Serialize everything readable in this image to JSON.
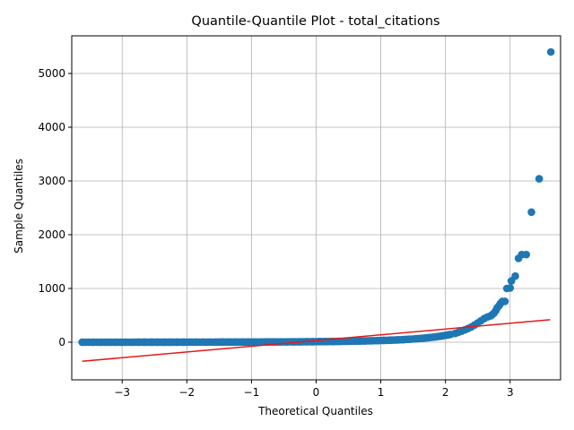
{
  "chart_data": {
    "type": "scatter",
    "title": "Quantile-Quantile Plot - total_citations",
    "xlabel": "Theoretical Quantiles",
    "ylabel": "Sample Quantiles",
    "xlim": [
      -3.78,
      3.78
    ],
    "ylim": [
      -700,
      5700
    ],
    "grid": true,
    "x_ticks": [
      -3,
      -2,
      -1,
      0,
      1,
      2,
      3
    ],
    "x_tick_labels": [
      "−3",
      "−2",
      "−1",
      "0",
      "1",
      "2",
      "3"
    ],
    "y_ticks": [
      0,
      1000,
      2000,
      3000,
      4000,
      5000
    ],
    "y_tick_labels": [
      "0",
      "1000",
      "2000",
      "3000",
      "4000",
      "5000"
    ],
    "marker_color": "#1f77b4",
    "line_color": "#e41a1c",
    "reference_line": {
      "x": [
        -3.62,
        3.62
      ],
      "y": [
        -355,
        418
      ]
    },
    "points": [
      [
        -3.62,
        0
      ],
      [
        -3.45,
        0
      ],
      [
        -3.33,
        0
      ],
      [
        -3.25,
        0
      ],
      [
        -3.18,
        0
      ],
      [
        -3.1,
        0
      ],
      [
        -3.02,
        0
      ],
      [
        -2.95,
        0
      ],
      [
        -2.85,
        0
      ],
      [
        -2.75,
        1
      ],
      [
        -2.65,
        1
      ],
      [
        -2.55,
        1
      ],
      [
        -2.45,
        1
      ],
      [
        -2.35,
        1
      ],
      [
        -2.25,
        1
      ],
      [
        -2.15,
        1
      ],
      [
        -2.05,
        1
      ],
      [
        -1.95,
        2
      ],
      [
        -1.85,
        2
      ],
      [
        -1.75,
        2
      ],
      [
        -1.65,
        2
      ],
      [
        -1.55,
        2
      ],
      [
        -1.45,
        3
      ],
      [
        -1.35,
        3
      ],
      [
        -1.25,
        3
      ],
      [
        -1.15,
        3
      ],
      [
        -1.05,
        4
      ],
      [
        -0.95,
        4
      ],
      [
        -0.85,
        4
      ],
      [
        -0.75,
        5
      ],
      [
        -0.65,
        5
      ],
      [
        -0.55,
        6
      ],
      [
        -0.45,
        6
      ],
      [
        -0.35,
        7
      ],
      [
        -0.25,
        8
      ],
      [
        -0.15,
        9
      ],
      [
        -0.05,
        10
      ],
      [
        0.05,
        11
      ],
      [
        0.15,
        12
      ],
      [
        0.25,
        13
      ],
      [
        0.35,
        15
      ],
      [
        0.45,
        17
      ],
      [
        0.55,
        19
      ],
      [
        0.65,
        21
      ],
      [
        0.75,
        24
      ],
      [
        0.85,
        27
      ],
      [
        0.95,
        30
      ],
      [
        1.05,
        34
      ],
      [
        1.15,
        38
      ],
      [
        1.25,
        43
      ],
      [
        1.35,
        49
      ],
      [
        1.45,
        56
      ],
      [
        1.55,
        64
      ],
      [
        1.65,
        74
      ],
      [
        1.75,
        86
      ],
      [
        1.85,
        100
      ],
      [
        1.95,
        117
      ],
      [
        2.05,
        138
      ],
      [
        2.15,
        163
      ],
      [
        2.2,
        185
      ],
      [
        2.25,
        205
      ],
      [
        2.3,
        230
      ],
      [
        2.35,
        255
      ],
      [
        2.4,
        285
      ],
      [
        2.45,
        320
      ],
      [
        2.5,
        360
      ],
      [
        2.55,
        400
      ],
      [
        2.6,
        440
      ],
      [
        2.65,
        470
      ],
      [
        2.7,
        490
      ],
      [
        2.72,
        510
      ],
      [
        2.75,
        540
      ],
      [
        2.78,
        590
      ],
      [
        2.8,
        640
      ],
      [
        2.83,
        680
      ],
      [
        2.85,
        720
      ],
      [
        2.88,
        760
      ],
      [
        2.92,
        760
      ],
      [
        2.95,
        1000
      ],
      [
        3.0,
        1010
      ],
      [
        3.02,
        1140
      ],
      [
        3.08,
        1230
      ],
      [
        3.13,
        1560
      ],
      [
        3.18,
        1630
      ],
      [
        3.25,
        1630
      ],
      [
        3.33,
        2420
      ],
      [
        3.45,
        3040
      ],
      [
        3.63,
        5400
      ]
    ]
  }
}
